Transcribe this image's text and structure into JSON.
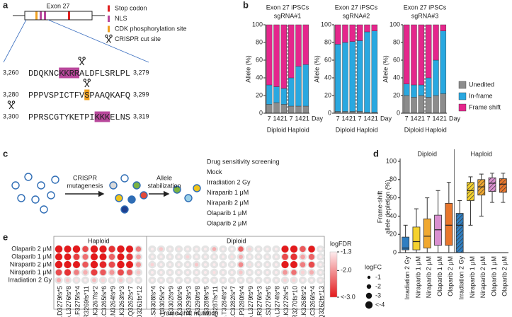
{
  "panel_labels": [
    "a",
    "b",
    "c",
    "d",
    "e"
  ],
  "panel_a": {
    "exon": "Exon 27",
    "legend": [
      {
        "label": "Stop codon",
        "color": "#e02020"
      },
      {
        "label": "NLS",
        "color": "#b8479b"
      },
      {
        "label": "CDK phosphorylation site",
        "color": "#f0a020"
      },
      {
        "label": "CRISPR cut site"
      }
    ],
    "sequences": [
      {
        "start": "3,260",
        "end": "3,279",
        "segments": [
          {
            "text": "DDQKNC"
          },
          {
            "text": "KKRR",
            "color": "#b8479b"
          },
          {
            "text": "ALDFLSRLPL"
          }
        ]
      },
      {
        "start": "3,280",
        "end": "3,299",
        "segments": [
          {
            "text": "PPPVSPICTFV"
          },
          {
            "text": "S",
            "color": "#f0a020"
          },
          {
            "text": "PAAQKAFQ"
          }
        ]
      },
      {
        "start": "3,300",
        "end": "3,319",
        "segments": [
          {
            "text": "PPRSCGTYKETPI"
          },
          {
            "text": "KKK",
            "color": "#b8479b"
          },
          {
            "text": "ELNS"
          }
        ]
      }
    ]
  },
  "panel_c": {
    "steps": [
      [
        "CRISPR",
        "mutagenesis"
      ],
      [
        "Allele",
        "stabilization"
      ]
    ],
    "screen_title": "Drug sensitivity screening",
    "screen": [
      {
        "name": "Mock",
        "color": "#9a9a9a"
      },
      {
        "name": "Irradiation 2 Gy",
        "color": "#2f7ec1"
      },
      {
        "name": "Niraparib 1 μM",
        "color": "#e8c52b"
      },
      {
        "name": "Niraparib 2 μM",
        "color": "#e89a2a"
      },
      {
        "name": "Olaparib 1 μM",
        "color": "#c97bc9"
      },
      {
        "name": "Olaparib 2 μM",
        "color": "#e5632b"
      }
    ]
  },
  "chart_data": [
    {
      "type": "stacked_bar",
      "title": "Exon 27 iPSCs",
      "subtitle": "sgRNA#1",
      "ylabel": "Allele (%)",
      "categories": [
        "7",
        "14",
        "21",
        "7",
        "14",
        "21"
      ],
      "xlabel": "Day",
      "groups": [
        "Diploid",
        "Haploid"
      ],
      "ylim": [
        0,
        100
      ],
      "yticks": [
        0,
        20,
        40,
        60,
        80,
        100
      ],
      "series": [
        {
          "name": "Unedited",
          "color": "#8c8c8c",
          "values": [
            10,
            12,
            10,
            8,
            8,
            8
          ]
        },
        {
          "name": "In-frame",
          "color": "#29a8e0",
          "values": [
            22,
            18,
            18,
            32,
            45,
            47
          ]
        },
        {
          "name": "Frame shift",
          "color": "#e5268c",
          "values": [
            68,
            70,
            72,
            60,
            47,
            45
          ]
        }
      ]
    },
    {
      "type": "stacked_bar",
      "title": "Exon 27 iPSCs",
      "subtitle": "sgRNA#2",
      "ylabel": "Allele (%)",
      "categories": [
        "7",
        "14",
        "21",
        "7",
        "14",
        "21"
      ],
      "xlabel": "Day",
      "groups": [
        "Diploid",
        "Haploid"
      ],
      "ylim": [
        0,
        100
      ],
      "yticks": [
        0,
        20,
        40,
        60,
        80,
        100
      ],
      "series": [
        {
          "name": "Unedited",
          "color": "#8c8c8c",
          "values": [
            2,
            2,
            2,
            2,
            1,
            1
          ]
        },
        {
          "name": "In-frame",
          "color": "#29a8e0",
          "values": [
            76,
            78,
            79,
            80,
            91,
            92
          ]
        },
        {
          "name": "Frame shift",
          "color": "#e5268c",
          "values": [
            22,
            20,
            19,
            18,
            8,
            7
          ]
        }
      ]
    },
    {
      "type": "stacked_bar",
      "title": "Exon 27 iPSCs",
      "subtitle": "sgRNA#3",
      "ylabel": "Allele (%)",
      "categories": [
        "7",
        "14",
        "21",
        "7",
        "14",
        "21"
      ],
      "xlabel": "Day",
      "groups": [
        "Diploid",
        "Haploid"
      ],
      "ylim": [
        0,
        100
      ],
      "yticks": [
        0,
        20,
        40,
        60,
        80,
        100
      ],
      "series": [
        {
          "name": "Unedited",
          "color": "#8c8c8c",
          "values": [
            20,
            18,
            20,
            18,
            20,
            22
          ]
        },
        {
          "name": "In-frame",
          "color": "#29a8e0",
          "values": [
            13,
            14,
            12,
            22,
            40,
            71
          ]
        },
        {
          "name": "Frame shift",
          "color": "#e5268c",
          "values": [
            67,
            68,
            68,
            60,
            40,
            7
          ]
        }
      ]
    },
    {
      "type": "box",
      "ylabel": [
        "Frame-shift",
        "allele depletion (%)"
      ],
      "ylim": [
        0,
        100
      ],
      "yticks": [
        0,
        20,
        40,
        60,
        80,
        100
      ],
      "groups": [
        {
          "name": "Diploid",
          "hatch": false,
          "categories": [
            "Irradiation 2 Gy",
            "Niraparib 1 μM",
            "Niraparib 2 μM",
            "Olaparib 1 μM",
            "Olaparib 2 μM"
          ],
          "colors": [
            "#2f7ec1",
            "#f5d22e",
            "#f0a830",
            "#d98fd0",
            "#e8762c"
          ],
          "boxes": [
            {
              "min": 0,
              "q1": 3,
              "median": 5,
              "q3": 17,
              "max": 30
            },
            {
              "min": 0,
              "q1": 3,
              "median": 12,
              "q3": 28,
              "max": 48
            },
            {
              "min": 0,
              "q1": 5,
              "median": 18,
              "q3": 37,
              "max": 60
            },
            {
              "min": 0,
              "q1": 8,
              "median": 25,
              "q3": 41,
              "max": 68
            },
            {
              "min": 0,
              "q1": 8,
              "median": 30,
              "q3": 54,
              "max": 77
            }
          ]
        },
        {
          "name": "Haploid",
          "hatch": true,
          "categories": [
            "Irradiation 2 Gy",
            "Niraparib 1 μM",
            "Niraparib 2 μM",
            "Olaparib 1 μM",
            "Olaparib 2 μM"
          ],
          "colors": [
            "#2f7ec1",
            "#f5d22e",
            "#f0a830",
            "#d98fd0",
            "#e8762c"
          ],
          "boxes": [
            {
              "min": 0,
              "q1": 0,
              "median": 30,
              "q3": 43,
              "max": 57
            },
            {
              "min": 30,
              "q1": 57,
              "median": 68,
              "q3": 77,
              "max": 83
            },
            {
              "min": 40,
              "q1": 63,
              "median": 72,
              "q3": 80,
              "max": 86
            },
            {
              "min": 55,
              "q1": 67,
              "median": 76,
              "q3": 82,
              "max": 87
            },
            {
              "min": 55,
              "q1": 66,
              "median": 75,
              "q3": 81,
              "max": 87
            }
          ]
        }
      ]
    },
    {
      "type": "dot_matrix",
      "xlabel": "Frame-shift mutation",
      "rows": [
        {
          "name": "Olaparib 2 μM",
          "color": "#e5632b"
        },
        {
          "name": "Olaparib 1 μM",
          "color": "#c97bc9"
        },
        {
          "name": "Niraparib 2 μM",
          "color": "#e89a2a"
        },
        {
          "name": "Niraparib 1 μM",
          "color": "#e8c52b"
        },
        {
          "name": "Irradiation 2 Gy",
          "color": "#2f7ec1"
        }
      ],
      "groups": [
        {
          "name": "Haploid",
          "columns": [
            "p.D3279fs*5",
            "p.L3276fs*8",
            "p.F3275fs*4",
            "p.R3269fs*11",
            "p.K3267fs*2",
            "p.C3265fs*6",
            "p.N3264fs*9",
            "p.K3263fs*3",
            "p.Q3262fs*7",
            "p.D3261fs*12"
          ]
        },
        {
          "name": "Diploid",
          "columns": [
            "p.S3308fs*4",
            "p.L3305fs*2",
            "p.E3302fs*9",
            "p.K3300fs*6",
            "p.P3293fs*3",
            "p.A3290fs*8",
            "p.S3289fs*5",
            "p.V3287fs*11",
            "p.T3284fs*2",
            "p.C3282fs*7",
            "p.P3280fs*4",
            "p.L3279fs*9",
            "p.R3276fs*3",
            "p.S3275fs*6",
            "p.L3274fs*8",
            "p.K3272fs*5",
            "p.R3270fs*10",
            "p.K3268fs*2",
            "p.C3266fs*4",
            "p.Q3262fs*13"
          ]
        }
      ],
      "logFDR": [
        [
          -3,
          -3,
          -3,
          -2.6,
          -3,
          -3,
          -2.8,
          -3,
          -3,
          -2.2,
          -1.3,
          -1.6,
          -1.3,
          -1.4,
          -1.3,
          -1.3,
          -1.3,
          -1.8,
          -1.3,
          -1.3,
          -2.4,
          -1.5,
          -1.3,
          -1.3,
          -1.3,
          -3,
          -3,
          -2.5,
          -3,
          -1.3
        ],
        [
          -3,
          -3,
          -2.7,
          -2.3,
          -3,
          -3,
          -2.4,
          -3,
          -2.8,
          -1.9,
          -1.3,
          -1.3,
          -1.3,
          -1.3,
          -1.5,
          -1.3,
          -1.3,
          -1.3,
          -1.3,
          -1.4,
          -1.8,
          -1.3,
          -1.3,
          -1.3,
          -1.3,
          -2.6,
          -2.8,
          -1.9,
          -2.4,
          -1.3
        ],
        [
          -3,
          -3,
          -3,
          -2.5,
          -3,
          -2.9,
          -2.6,
          -3,
          -3,
          -2,
          -1.5,
          -1.3,
          -1.3,
          -1.3,
          -1.3,
          -1.6,
          -1.3,
          -1.3,
          -1.3,
          -1.3,
          -2.1,
          -1.4,
          -1.3,
          -1.3,
          -1.3,
          -3,
          -3,
          -2.2,
          -2.6,
          -1.3
        ],
        [
          -2.6,
          -2.8,
          -2.2,
          -1.8,
          -2.7,
          -2.5,
          -2,
          -2.6,
          -2.4,
          -1.6,
          -1.3,
          -1.3,
          -1.3,
          -1.3,
          -1.3,
          -1.3,
          -1.3,
          -1.4,
          -1.3,
          -1.3,
          -1.6,
          -1.3,
          -1.3,
          -1.3,
          -1.3,
          -2,
          -2.3,
          -1.5,
          -1.8,
          -1.3
        ],
        [
          -1.8,
          -1.6,
          -1.4,
          -1.3,
          -1.7,
          -1.5,
          -1.3,
          -1.6,
          -1.4,
          -1.3,
          -1.3,
          -1.3,
          -1.3,
          -1.3,
          -1.3,
          -1.3,
          -1.3,
          -1.3,
          -1.3,
          -1.3,
          -1.3,
          -1.3,
          -1.3,
          -1.3,
          -1.3,
          -1.5,
          -1.5,
          -1.3,
          -1.3,
          -1.3
        ]
      ],
      "logFC": [
        [
          -4,
          -3.8,
          -4,
          -3,
          -4,
          -3.9,
          -3.4,
          -4,
          -3.8,
          -2.6,
          -0.8,
          -1.5,
          -0.8,
          -1,
          -0.8,
          -0.8,
          -0.8,
          -1.7,
          -0.8,
          -0.8,
          -2.6,
          -1.2,
          -0.8,
          -0.8,
          -0.8,
          -3.8,
          -3.9,
          -3,
          -3.6,
          -0.8
        ],
        [
          -3.8,
          -3.6,
          -3.2,
          -2.8,
          -3.8,
          -3.7,
          -3,
          -3.7,
          -3.4,
          -2.2,
          -0.8,
          -0.8,
          -0.8,
          -0.8,
          -1.2,
          -0.8,
          -0.8,
          -0.8,
          -0.8,
          -1,
          -1.8,
          -0.8,
          -0.8,
          -0.8,
          -0.8,
          -3.2,
          -3.4,
          -2.2,
          -2.9,
          -0.8
        ],
        [
          -4,
          -3.9,
          -3.8,
          -3,
          -4,
          -3.6,
          -3.2,
          -4,
          -3.8,
          -2.4,
          -1.2,
          -0.8,
          -0.8,
          -0.8,
          -0.8,
          -1.4,
          -0.8,
          -0.8,
          -0.8,
          -0.8,
          -2.3,
          -1,
          -0.8,
          -0.8,
          -0.8,
          -3.9,
          -3.8,
          -2.6,
          -3.1,
          -0.8
        ],
        [
          -3.2,
          -3.4,
          -2.6,
          -2,
          -3.3,
          -3,
          -2.4,
          -3.2,
          -2.9,
          -1.7,
          -0.8,
          -0.8,
          -0.8,
          -0.8,
          -0.8,
          -0.8,
          -0.8,
          -1,
          -0.8,
          -0.8,
          -1.5,
          -0.8,
          -0.8,
          -0.8,
          -0.8,
          -2.2,
          -2.6,
          -1.4,
          -1.9,
          -0.8
        ],
        [
          -1.9,
          -1.6,
          -1.2,
          -0.9,
          -1.7,
          -1.4,
          -0.9,
          -1.5,
          -1.2,
          -0.9,
          -0.8,
          -0.8,
          -0.8,
          -0.8,
          -0.8,
          -0.8,
          -0.8,
          -0.8,
          -0.8,
          -0.8,
          -0.8,
          -0.8,
          -0.8,
          -0.8,
          -0.8,
          -1.2,
          -1.3,
          -0.8,
          -0.8,
          -0.8
        ]
      ],
      "color_legend": {
        "title": "logFDR",
        "lim": [
          -1.3,
          -3
        ],
        "colors": [
          "#fdecee",
          "#e31a1c"
        ],
        "ticks": [
          -1.3,
          {
            "value": -2,
            "label": "-2.0"
          },
          {
            "value": -3,
            "label": "<-3.0"
          }
        ]
      },
      "size_legend": {
        "title": "logFC",
        "ticks": [
          -1,
          -2,
          -3,
          {
            "value": -4,
            "label": "<-4"
          }
        ]
      }
    }
  ]
}
